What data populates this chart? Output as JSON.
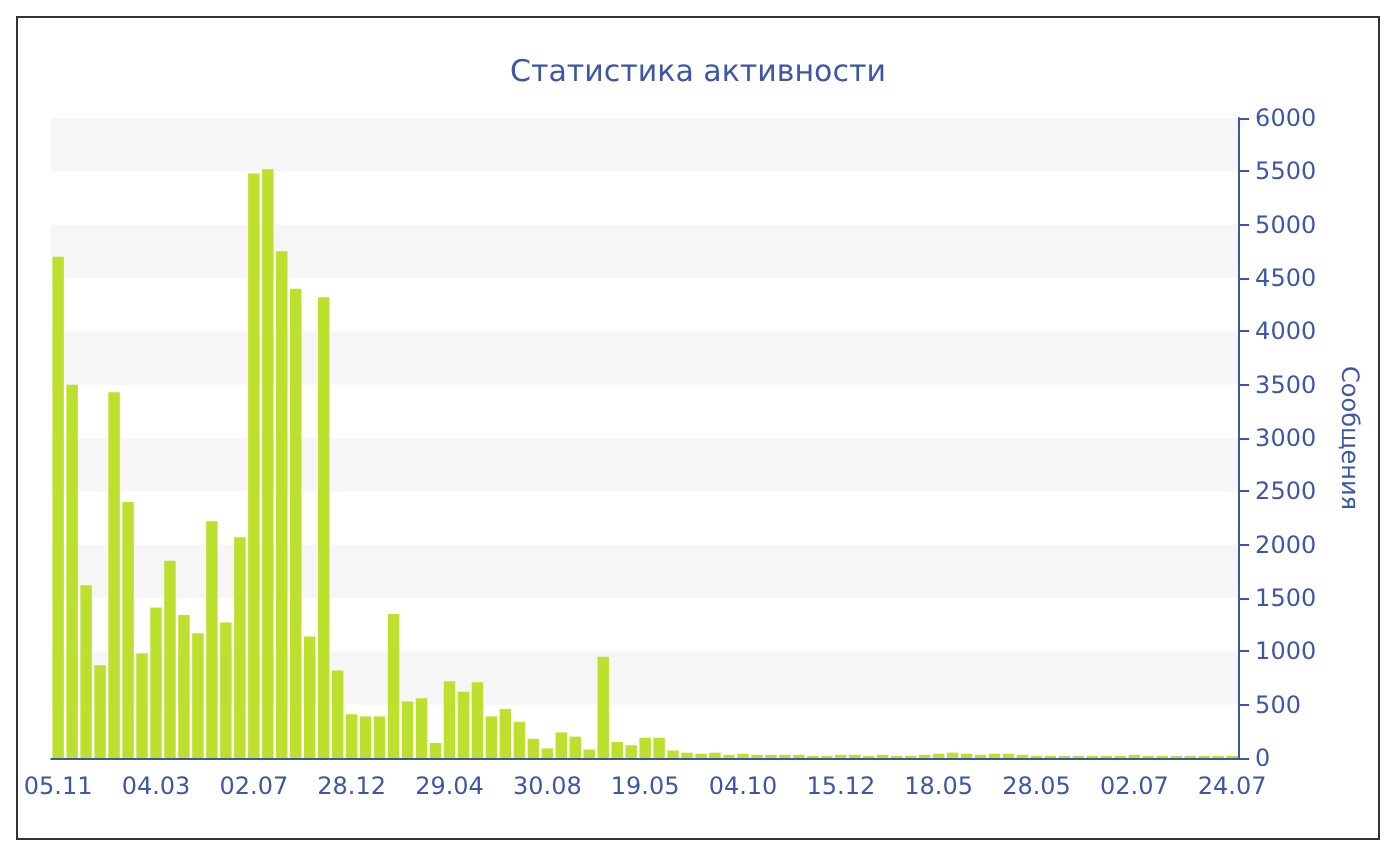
{
  "chart_data": {
    "type": "bar",
    "title": "Статистика активности",
    "ylabel": "Сообщения",
    "categories": [
      "05.11",
      null,
      null,
      null,
      null,
      null,
      null,
      "04.03",
      null,
      null,
      null,
      null,
      null,
      null,
      "02.07",
      null,
      null,
      null,
      null,
      null,
      null,
      "28.12",
      null,
      null,
      null,
      null,
      null,
      null,
      "29.04",
      null,
      null,
      null,
      null,
      null,
      null,
      "30.08",
      null,
      null,
      null,
      null,
      null,
      null,
      "19.05",
      null,
      null,
      null,
      null,
      null,
      null,
      "04.10",
      null,
      null,
      null,
      null,
      null,
      null,
      "15.12",
      null,
      null,
      null,
      null,
      null,
      null,
      "18.05",
      null,
      null,
      null,
      null,
      null,
      null,
      "28.05",
      null,
      null,
      null,
      null,
      null,
      null,
      "02.07",
      null,
      null,
      null,
      null,
      null,
      null,
      "24.07"
    ],
    "series": [
      {
        "color": "#bde02e",
        "values": [
          4700,
          3500,
          1620,
          870,
          3430,
          2400,
          980,
          1410,
          1850,
          1340,
          1170,
          2220,
          1270,
          2070,
          5480,
          5520,
          4750,
          4400,
          1140,
          4320,
          820,
          410,
          390,
          390,
          1350,
          530,
          560,
          140,
          720,
          620,
          710,
          390,
          460,
          340,
          180,
          90,
          240,
          200,
          80,
          950,
          150,
          120,
          190,
          190,
          70,
          50,
          40,
          50,
          30,
          40,
          30,
          30,
          30,
          30,
          20,
          20,
          30,
          30,
          20,
          30,
          20,
          20,
          30,
          40,
          50,
          40,
          30,
          40,
          40,
          30,
          20,
          20,
          20,
          20,
          20,
          20,
          20,
          30,
          20,
          20,
          20,
          20,
          20,
          20,
          20
        ]
      }
    ],
    "ylim": [
      0,
      6000
    ],
    "yticks": [
      0,
      500,
      1000,
      1500,
      2000,
      2500,
      3000,
      3500,
      4000,
      4500,
      5000,
      5500,
      6000
    ]
  }
}
